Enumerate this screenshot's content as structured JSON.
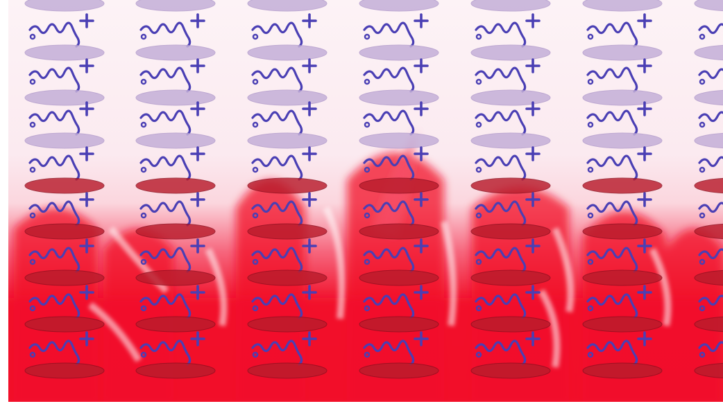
{
  "scene": {
    "description_free": true,
    "colors": {
      "background_top": "#fdf2f4",
      "fluid_red": "#f2112a",
      "fluid_mid": "#f7506a",
      "disk_purple": "#c4afd8",
      "disk_red": "#b91c2c",
      "squiggle_blue": "#4a3fb4"
    },
    "grid": {
      "columns": 7,
      "rows": 9
    },
    "icons": [
      "squiggle-plus-icon",
      "disk-ellipse-icon"
    ]
  }
}
